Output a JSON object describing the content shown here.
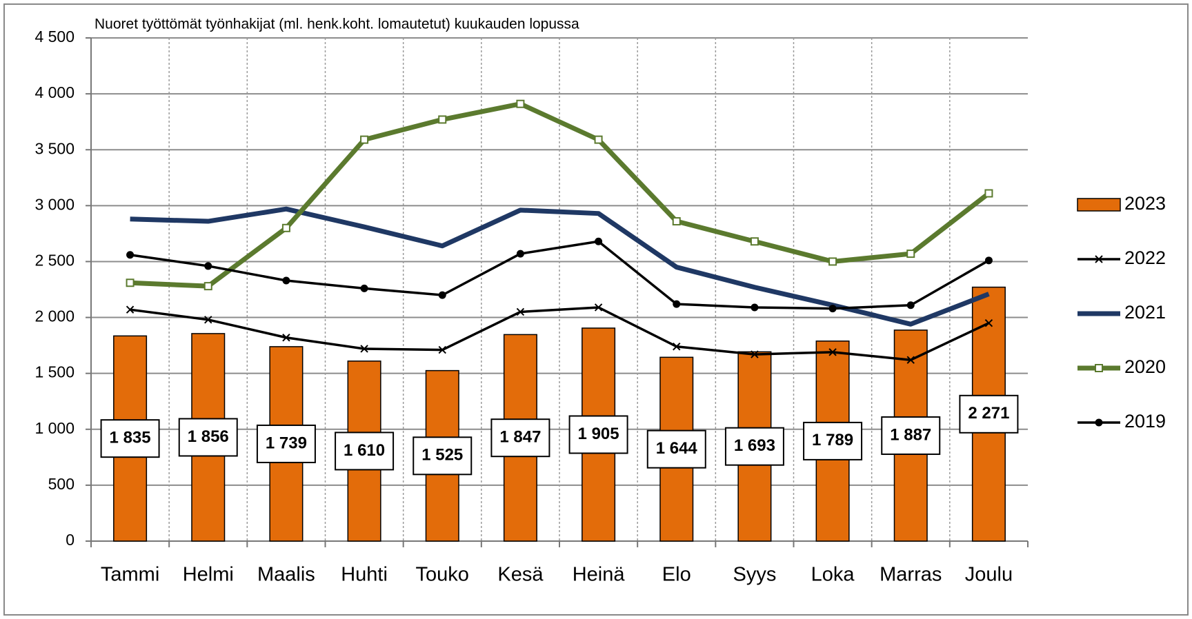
{
  "chart_data": {
    "type": "combo",
    "title": "Nuoret työttömät työnhakijat (ml. henk.koht. lomautetut) kuukauden lopussa",
    "categories": [
      "Tammi",
      "Helmi",
      "Maalis",
      "Huhti",
      "Touko",
      "Kesä",
      "Heinä",
      "Elo",
      "Syys",
      "Loka",
      "Marras",
      "Joulu"
    ],
    "series": [
      {
        "name": "2023",
        "type": "bar",
        "color": "#e36c0a",
        "values": [
          1835,
          1856,
          1739,
          1610,
          1525,
          1847,
          1905,
          1644,
          1693,
          1789,
          1887,
          2271
        ],
        "value_labels": [
          "1 835",
          "1 856",
          "1 739",
          "1 610",
          "1 525",
          "1 847",
          "1 905",
          "1 644",
          "1 693",
          "1 789",
          "1 887",
          "2 271"
        ]
      },
      {
        "name": "2022",
        "type": "line",
        "marker": "x",
        "color": "#000000",
        "values": [
          2070,
          1980,
          1820,
          1720,
          1710,
          2050,
          2090,
          1740,
          1670,
          1690,
          1620,
          1950
        ]
      },
      {
        "name": "2021",
        "type": "line",
        "marker": "none",
        "color": "#1f3864",
        "values": [
          2880,
          2860,
          2970,
          2810,
          2640,
          2960,
          2930,
          2450,
          2270,
          2110,
          1940,
          2210
        ]
      },
      {
        "name": "2020",
        "type": "line",
        "marker": "square",
        "color": "#5b7a2e",
        "values": [
          2310,
          2280,
          2800,
          3590,
          3770,
          3910,
          3590,
          2860,
          2680,
          2500,
          2570,
          3110
        ]
      },
      {
        "name": "2019",
        "type": "line",
        "marker": "circle",
        "color": "#000000",
        "values": [
          2560,
          2460,
          2330,
          2260,
          2200,
          2570,
          2680,
          2120,
          2090,
          2080,
          2110,
          2510
        ]
      }
    ],
    "ylim": [
      0,
      4500
    ],
    "yticks": [
      0,
      500,
      {
        "value": 1000,
        "label": "1 000"
      },
      {
        "value": 1500,
        "label": "1 500"
      },
      {
        "value": 2000,
        "label": "2 000"
      },
      {
        "value": 2500,
        "label": "2 500"
      },
      {
        "value": 3000,
        "label": "3 000"
      },
      {
        "value": 3500,
        "label": "3 500"
      },
      {
        "value": 4000,
        "label": "4 000"
      },
      {
        "value": 4500,
        "label": "4 500"
      }
    ],
    "grid": true
  }
}
